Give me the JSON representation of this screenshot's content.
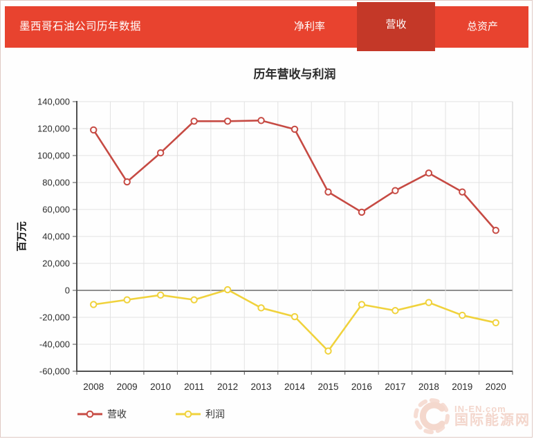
{
  "header": {
    "title": "墨西哥石油公司历年数据",
    "tabs": [
      {
        "label": "净利率",
        "active": false
      },
      {
        "label": "营收",
        "active": true
      },
      {
        "label": "总资产",
        "active": false
      }
    ]
  },
  "chart_data": {
    "type": "line",
    "title": "历年营收与利润",
    "xlabel": "",
    "ylabel": "百万元",
    "categories": [
      "2008",
      "2009",
      "2010",
      "2011",
      "2012",
      "2013",
      "2014",
      "2015",
      "2016",
      "2017",
      "2018",
      "2019",
      "2020"
    ],
    "series": [
      {
        "name": "营收",
        "color": "#c64a43",
        "values": [
          119000,
          80500,
          102000,
          125500,
          125500,
          126000,
          119500,
          73000,
          58000,
          74000,
          87000,
          73000,
          44500
        ]
      },
      {
        "name": "利润",
        "color": "#f0d23c",
        "values": [
          -10500,
          -7000,
          -3500,
          -7000,
          500,
          -13000,
          -19500,
          -45000,
          -10500,
          -15000,
          -9000,
          -18500,
          -24000
        ]
      }
    ],
    "ylim": [
      -60000,
      140000
    ],
    "ytick_step": 20000,
    "grid": true,
    "marker": "open-circle",
    "legend_position": "bottom-left"
  },
  "watermark": {
    "logo": "sun-icon",
    "brand": "IN-EN.com",
    "site_name": "国际能源网"
  },
  "colors": {
    "header": "#e8432f",
    "header_active_tab": "#c43828",
    "axis": "#4f4f4f",
    "grid": "#e2e2e2",
    "zero_line": "#8f8f8f",
    "tick_text": "#2b2b2b"
  }
}
